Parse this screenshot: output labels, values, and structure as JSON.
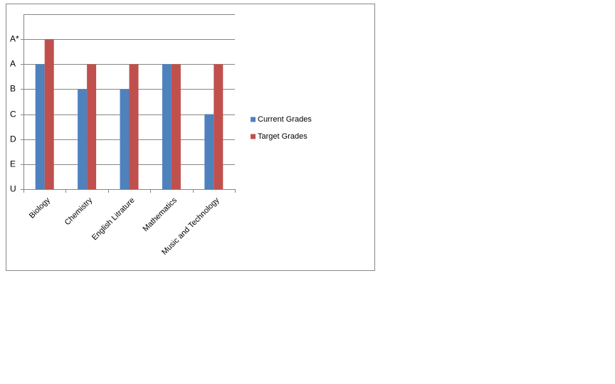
{
  "chart_data": {
    "type": "bar",
    "categories": [
      "Biology",
      "Chemistry",
      "English Litrature",
      "Mathematics",
      "Music and Technology"
    ],
    "series": [
      {
        "name": "Current Grades",
        "color": "#4f81bd",
        "values": [
          5,
          4,
          4,
          5,
          3
        ]
      },
      {
        "name": "Target Grades",
        "color": "#c0504d",
        "values": [
          6,
          5,
          5,
          5,
          5
        ]
      }
    ],
    "ylim": [
      0,
      7
    ],
    "yticks": [
      {
        "value": 0,
        "label": "U"
      },
      {
        "value": 1,
        "label": "E"
      },
      {
        "value": 2,
        "label": "D"
      },
      {
        "value": 3,
        "label": "C"
      },
      {
        "value": 4,
        "label": "B"
      },
      {
        "value": 5,
        "label": "A"
      },
      {
        "value": 6,
        "label": "A*"
      }
    ],
    "grid": true,
    "legend": "right"
  }
}
